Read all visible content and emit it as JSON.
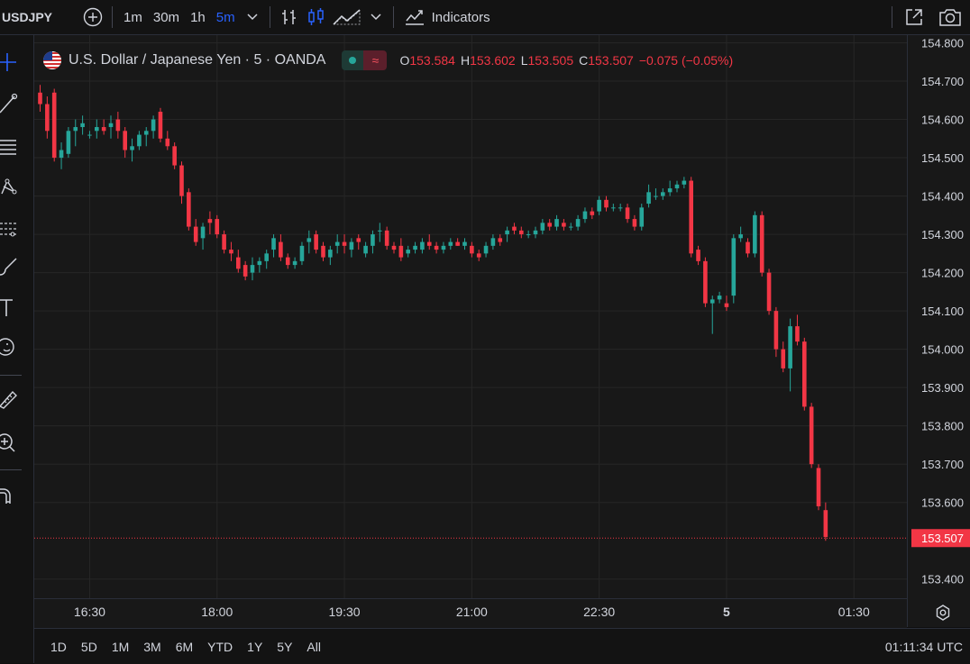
{
  "toolbar": {
    "symbol": "USDJPY",
    "timeframes": [
      "1m",
      "30m",
      "1h",
      "5m"
    ],
    "active_timeframe": "5m",
    "indicators_label": "Indicators"
  },
  "legend": {
    "title": "U.S. Dollar / Japanese Yen · 5 · OANDA",
    "pill_b": "≈",
    "open_label": "O",
    "open": "153.584",
    "high_label": "H",
    "high": "153.602",
    "low_label": "L",
    "low": "153.505",
    "close_label": "C",
    "close": "153.507",
    "change": "−0.075 (−0.05%)"
  },
  "ranges": [
    "1D",
    "5D",
    "1M",
    "3M",
    "6M",
    "YTD",
    "1Y",
    "5Y",
    "All"
  ],
  "clock": "01:11:34 UTC",
  "colors": {
    "up": "#26a69a",
    "down": "#f23645",
    "accent": "#2962ff",
    "background": "#181818",
    "grid": "#262626"
  },
  "chart_data": {
    "type": "candlestick",
    "price_ticks": [
      "154.800",
      "154.700",
      "154.600",
      "154.500",
      "154.400",
      "154.300",
      "154.200",
      "154.100",
      "154.000",
      "153.900",
      "153.800",
      "153.700",
      "153.600",
      "153.507",
      "153.400"
    ],
    "price_values": [
      154.8,
      154.7,
      154.6,
      154.5,
      154.4,
      154.3,
      154.2,
      154.1,
      154.0,
      153.9,
      153.8,
      153.7,
      153.6,
      153.4
    ],
    "ylim": [
      153.35,
      154.82
    ],
    "last_price": 153.507,
    "last_price_label": "153.507",
    "time_ticks": [
      {
        "label": "16:30",
        "index": 7,
        "bold": false
      },
      {
        "label": "18:00",
        "index": 25,
        "bold": false
      },
      {
        "label": "19:30",
        "index": 43,
        "bold": false
      },
      {
        "label": "21:00",
        "index": 61,
        "bold": false
      },
      {
        "label": "22:30",
        "index": 79,
        "bold": false
      },
      {
        "label": "5",
        "index": 97,
        "bold": true
      },
      {
        "label": "01:30",
        "index": 115,
        "bold": false
      }
    ],
    "candles": [
      [
        154.67,
        154.69,
        154.62,
        154.64
      ],
      [
        154.64,
        154.66,
        154.55,
        154.57
      ],
      [
        154.67,
        154.68,
        154.49,
        154.5
      ],
      [
        154.5,
        154.54,
        154.47,
        154.52
      ],
      [
        154.51,
        154.58,
        154.5,
        154.57
      ],
      [
        154.57,
        154.6,
        154.53,
        154.58
      ],
      [
        154.58,
        154.61,
        154.56,
        154.59
      ],
      [
        154.56,
        154.57,
        154.55,
        154.56
      ],
      [
        154.57,
        154.6,
        154.55,
        154.58
      ],
      [
        154.58,
        154.6,
        154.56,
        154.57
      ],
      [
        154.58,
        154.61,
        154.55,
        154.59
      ],
      [
        154.6,
        154.62,
        154.55,
        154.57
      ],
      [
        154.57,
        154.58,
        154.5,
        154.52
      ],
      [
        154.52,
        154.55,
        154.49,
        154.53
      ],
      [
        154.53,
        154.57,
        154.52,
        154.56
      ],
      [
        154.56,
        154.58,
        154.53,
        154.57
      ],
      [
        154.57,
        154.61,
        154.55,
        154.6
      ],
      [
        154.62,
        154.63,
        154.54,
        154.55
      ],
      [
        154.55,
        154.57,
        154.52,
        154.53
      ],
      [
        154.53,
        154.54,
        154.47,
        154.48
      ],
      [
        154.48,
        154.49,
        154.38,
        154.4
      ],
      [
        154.41,
        154.42,
        154.31,
        154.32
      ],
      [
        154.32,
        154.34,
        154.27,
        154.28
      ],
      [
        154.29,
        154.33,
        154.26,
        154.32
      ],
      [
        154.34,
        154.36,
        154.3,
        154.33
      ],
      [
        154.34,
        154.35,
        154.29,
        154.3
      ],
      [
        154.3,
        154.31,
        154.25,
        154.26
      ],
      [
        154.26,
        154.28,
        154.23,
        154.25
      ],
      [
        154.24,
        154.26,
        154.2,
        154.21
      ],
      [
        154.22,
        154.23,
        154.18,
        154.19
      ],
      [
        154.2,
        154.24,
        154.18,
        154.22
      ],
      [
        154.22,
        154.24,
        154.2,
        154.23
      ],
      [
        154.23,
        154.26,
        154.21,
        154.25
      ],
      [
        154.26,
        154.3,
        154.24,
        154.29
      ],
      [
        154.28,
        154.3,
        154.23,
        154.24
      ],
      [
        154.24,
        154.25,
        154.21,
        154.22
      ],
      [
        154.22,
        154.24,
        154.21,
        154.23
      ],
      [
        154.23,
        154.28,
        154.22,
        154.27
      ],
      [
        154.28,
        154.31,
        154.25,
        154.29
      ],
      [
        154.3,
        154.31,
        154.25,
        154.26
      ],
      [
        154.27,
        154.28,
        154.23,
        154.24
      ],
      [
        154.24,
        154.27,
        154.22,
        154.26
      ],
      [
        154.27,
        154.3,
        154.25,
        154.28
      ],
      [
        154.28,
        154.3,
        154.25,
        154.27
      ],
      [
        154.26,
        154.29,
        154.24,
        154.28
      ],
      [
        154.29,
        154.3,
        154.26,
        154.28
      ],
      [
        154.25,
        154.28,
        154.24,
        154.27
      ],
      [
        154.27,
        154.31,
        154.25,
        154.3
      ],
      [
        154.31,
        154.33,
        154.28,
        154.31
      ],
      [
        154.31,
        154.32,
        154.26,
        154.27
      ],
      [
        154.27,
        154.28,
        154.25,
        154.26
      ],
      [
        154.27,
        154.29,
        154.23,
        154.24
      ],
      [
        154.25,
        154.27,
        154.24,
        154.26
      ],
      [
        154.26,
        154.28,
        154.25,
        154.27
      ],
      [
        154.26,
        154.29,
        154.25,
        154.28
      ],
      [
        154.28,
        154.3,
        154.26,
        154.27
      ],
      [
        154.27,
        154.28,
        154.25,
        154.26
      ],
      [
        154.26,
        154.28,
        154.25,
        154.27
      ],
      [
        154.27,
        154.29,
        154.26,
        154.28
      ],
      [
        154.28,
        154.29,
        154.27,
        154.27
      ],
      [
        154.27,
        154.29,
        154.26,
        154.28
      ],
      [
        154.27,
        154.28,
        154.24,
        154.25
      ],
      [
        154.25,
        154.26,
        154.23,
        154.24
      ],
      [
        154.25,
        154.28,
        154.24,
        154.27
      ],
      [
        154.27,
        154.3,
        154.26,
        154.29
      ],
      [
        154.29,
        154.3,
        154.27,
        154.28
      ],
      [
        154.3,
        154.32,
        154.28,
        154.31
      ],
      [
        154.32,
        154.33,
        154.3,
        154.31
      ],
      [
        154.31,
        154.32,
        154.29,
        154.3
      ],
      [
        154.3,
        154.31,
        154.29,
        154.3
      ],
      [
        154.3,
        154.32,
        154.29,
        154.31
      ],
      [
        154.31,
        154.34,
        154.3,
        154.33
      ],
      [
        154.33,
        154.34,
        154.31,
        154.32
      ],
      [
        154.32,
        154.35,
        154.31,
        154.34
      ],
      [
        154.33,
        154.34,
        154.31,
        154.32
      ],
      [
        154.32,
        154.33,
        154.31,
        154.32
      ],
      [
        154.32,
        154.35,
        154.31,
        154.34
      ],
      [
        154.34,
        154.37,
        154.33,
        154.36
      ],
      [
        154.36,
        154.37,
        154.34,
        154.35
      ],
      [
        154.36,
        154.4,
        154.35,
        154.39
      ],
      [
        154.39,
        154.4,
        154.36,
        154.37
      ],
      [
        154.37,
        154.38,
        154.36,
        154.37
      ],
      [
        154.37,
        154.38,
        154.36,
        154.37
      ],
      [
        154.37,
        154.38,
        154.33,
        154.34
      ],
      [
        154.34,
        154.35,
        154.31,
        154.32
      ],
      [
        154.32,
        154.38,
        154.31,
        154.37
      ],
      [
        154.38,
        154.43,
        154.37,
        154.41
      ],
      [
        154.4,
        154.42,
        154.39,
        154.4
      ],
      [
        154.4,
        154.42,
        154.39,
        154.41
      ],
      [
        154.41,
        154.44,
        154.4,
        154.42
      ],
      [
        154.42,
        154.44,
        154.41,
        154.43
      ],
      [
        154.43,
        154.45,
        154.42,
        154.44
      ],
      [
        154.44,
        154.45,
        154.24,
        154.25
      ],
      [
        154.26,
        154.27,
        154.22,
        154.23
      ],
      [
        154.23,
        154.24,
        154.11,
        154.12
      ],
      [
        154.12,
        154.14,
        154.04,
        154.13
      ],
      [
        154.13,
        154.15,
        154.12,
        154.14
      ],
      [
        154.12,
        154.14,
        154.1,
        154.11
      ],
      [
        154.14,
        154.3,
        154.12,
        154.29
      ],
      [
        154.29,
        154.32,
        154.28,
        154.3
      ],
      [
        154.28,
        154.29,
        154.24,
        154.25
      ],
      [
        154.25,
        154.36,
        154.24,
        154.35
      ],
      [
        154.35,
        154.36,
        154.19,
        154.2
      ],
      [
        154.2,
        154.21,
        154.09,
        154.1
      ],
      [
        154.1,
        154.11,
        153.98,
        154.0
      ],
      [
        154.0,
        154.02,
        153.94,
        153.95
      ],
      [
        153.95,
        154.08,
        153.89,
        154.06
      ],
      [
        154.06,
        154.09,
        154.01,
        154.02
      ],
      [
        154.02,
        154.03,
        153.84,
        153.85
      ],
      [
        153.85,
        153.86,
        153.69,
        153.7
      ],
      [
        153.69,
        153.7,
        153.58,
        153.59
      ],
      [
        153.58,
        153.6,
        153.5,
        153.51
      ]
    ]
  }
}
